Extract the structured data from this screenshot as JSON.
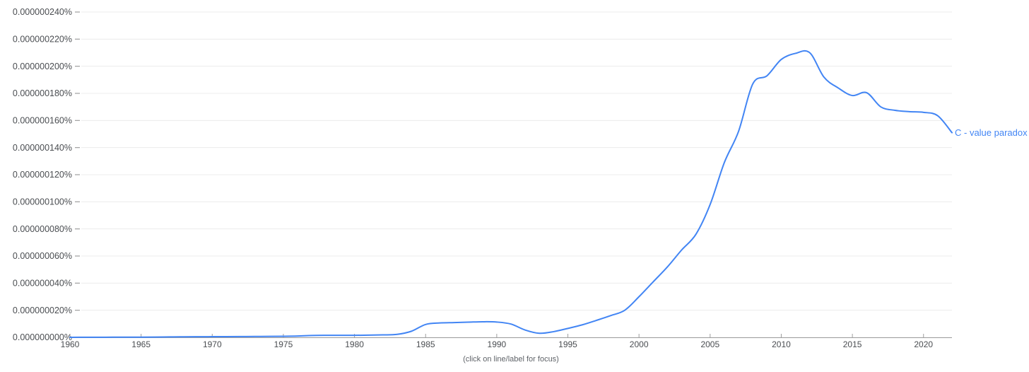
{
  "page": {
    "background": "#ffffff",
    "footer_hint": "(click on line/label for focus)"
  },
  "colors": {
    "gridline": "#ececec",
    "axis": "#9e9e9e",
    "tick_label": "#4a4d51",
    "footer_text": "#5f6368"
  },
  "chart_data": {
    "type": "line",
    "title": "",
    "xlabel": "",
    "ylabel": "",
    "grid": true,
    "legend_position": "line-end-label",
    "x_range": [
      1960,
      2022
    ],
    "x_ticks": [
      "1960",
      "1965",
      "1970",
      "1975",
      "1980",
      "1985",
      "1990",
      "1995",
      "2000",
      "2005",
      "2010",
      "2015",
      "2020"
    ],
    "y_axis": {
      "unit": "percent of corpus (labels are in %, values below are in 1e-9 %)",
      "ylim_e9": [
        0,
        240
      ],
      "tick_values_e9": [
        240,
        220,
        200,
        180,
        160,
        140,
        120,
        100,
        80,
        60,
        40,
        20,
        0
      ],
      "tick_labels": [
        "0.000000240%",
        "0.000000220%",
        "0.000000200%",
        "0.000000180%",
        "0.000000160%",
        "0.000000140%",
        "0.000000120%",
        "0.000000100%",
        "0.000000080%",
        "0.000000060%",
        "0.000000040%",
        "0.000000020%",
        "0.000000000%"
      ]
    },
    "series": [
      {
        "name": "C - value paradox",
        "color": "#4285F4",
        "x_start": 1960,
        "x_step": 1,
        "values_e9": [
          0,
          0.05,
          0.05,
          0.1,
          0.1,
          0.15,
          0.2,
          0.3,
          0.4,
          0.45,
          0.5,
          0.55,
          0.6,
          0.65,
          0.7,
          0.8,
          1.0,
          1.4,
          1.5,
          1.5,
          1.5,
          1.6,
          1.8,
          2.2,
          4.5,
          9.5,
          10.6,
          10.9,
          11.2,
          11.5,
          11.3,
          9.8,
          5.4,
          3.0,
          4.2,
          6.6,
          9.2,
          12.5,
          16.0,
          20.0,
          30.0,
          41.0,
          52.0,
          64.5,
          76.0,
          98.0,
          129.0,
          152.0,
          187.0,
          193.0,
          205.0,
          209.5,
          210.0,
          192.0,
          184.0,
          178.4,
          180.5,
          170.0,
          167.5,
          166.5,
          166.0,
          163.5,
          151.0
        ]
      }
    ]
  }
}
